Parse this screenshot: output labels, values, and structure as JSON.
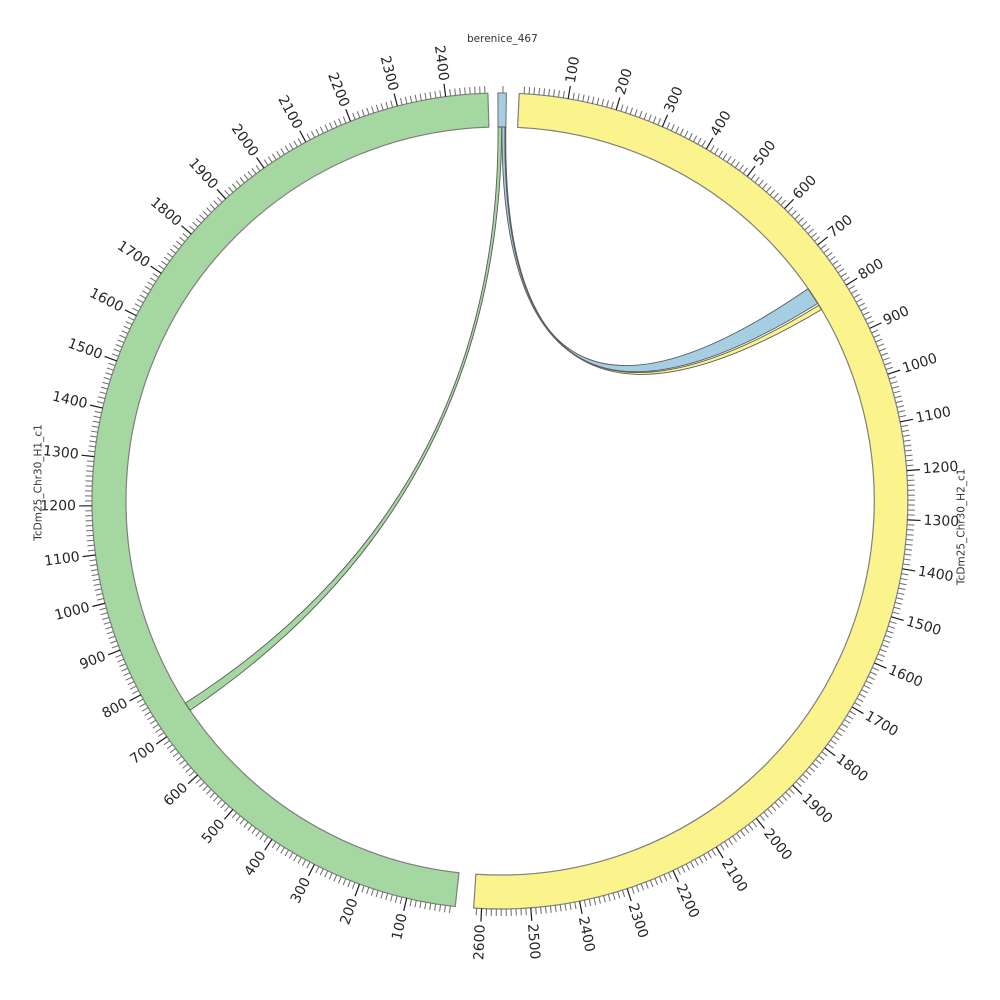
{
  "figure": {
    "background": "#ffffff"
  },
  "chart_data": {
    "type": "circos",
    "description": "Circular synteny plot: contig berenice_467 linked to two haplotype chromosomes",
    "center": [
      500,
      501
    ],
    "radius": {
      "outer": 408,
      "inner": 374,
      "minor_tick_end": 415,
      "major_tick_end": 421,
      "tick_label": 424,
      "sector_label": 462
    },
    "tick": {
      "minor_interval": 10,
      "major_interval": 100
    },
    "segments": [
      {
        "id": "berenice_467",
        "label": "berenice_467",
        "color": "#A6CEE3",
        "start_deg": -0.3,
        "end_deg": 0.9,
        "length": 17,
        "label_orientation": "horizontal",
        "show_tick_labels": false,
        "tick_labels": []
      },
      {
        "id": "TcDm25_Chr30_H2_c1",
        "label": "TcDm25_Chr30_H2_c1",
        "color": "#FBF38C",
        "start_deg": 2.7,
        "end_deg": 183.7,
        "length": 2616,
        "label_orientation": "vertical",
        "show_tick_labels": true,
        "tick_labels": [
          100,
          200,
          300,
          400,
          500,
          600,
          700,
          800,
          900,
          1000,
          1100,
          1200,
          1300,
          1400,
          1500,
          1600,
          1700,
          1800,
          1900,
          2000,
          2100,
          2200,
          2300,
          2400,
          2500,
          2600
        ]
      },
      {
        "id": "TcDm25_Chr30_H1_c1",
        "label": "TcDm25_Chr30_H1_c1",
        "color": "#A5D7A1",
        "start_deg": 186.3,
        "end_deg": 358.3,
        "length": 2486,
        "label_orientation": "vertical",
        "show_tick_labels": true,
        "tick_labels": [
          100,
          200,
          300,
          400,
          500,
          600,
          700,
          800,
          900,
          1000,
          1100,
          1200,
          1300,
          1400,
          1500,
          1600,
          1700,
          1800,
          1900,
          2000,
          2100,
          2200,
          2300,
          2400
        ]
      }
    ],
    "links": [
      {
        "source": "berenice_467",
        "source_range": [
          0,
          8
        ],
        "target": "TcDm25_Chr30_H1_c1",
        "target_range": [
          718,
          737
        ],
        "color": "#A5D7A1"
      },
      {
        "source": "berenice_467",
        "source_range": [
          8.5,
          15
        ],
        "target": "TcDm25_Chr30_H2_c1",
        "target_range": [
          762,
          801
        ],
        "color": "#A6CEE3"
      },
      {
        "source": "berenice_467",
        "source_range": [
          15.3,
          17
        ],
        "target": "TcDm25_Chr30_H2_c1",
        "target_range": [
          806,
          817
        ],
        "color": "#FBF38C"
      }
    ],
    "styles": {
      "band_stroke": "#7f7f7f",
      "band_stroke_width": 1.2,
      "minor_tick_color": "#6a6a6a",
      "major_tick_color": "#1a1a1a",
      "tick_label_color": "#262626",
      "tick_label_size": 14,
      "sector_label_color": "#333333",
      "sector_label_size": 10.5,
      "link_stroke": "#5a5a5a",
      "link_stroke_width": 0.9
    }
  }
}
